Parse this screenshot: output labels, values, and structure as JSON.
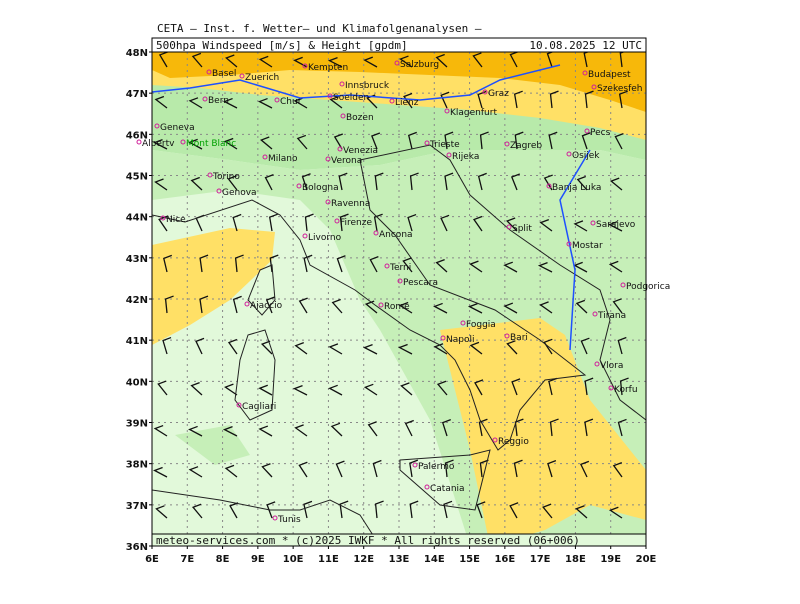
{
  "header": {
    "title": "CETA — Inst. f. Wetter— und Klimafolgenanalysen —",
    "product": "500hpa Windspeed [m/s] & Height [gpdm]",
    "datetime": "10.08.2025 12 UTC"
  },
  "footer": "meteo-services.com * (c)2025 IWKF * All rights reserved (06+006)",
  "axes": {
    "lat_labels": [
      "48N",
      "47N",
      "46N",
      "45N",
      "44N",
      "43N",
      "42N",
      "41N",
      "40N",
      "39N",
      "38N",
      "37N",
      "36N"
    ],
    "lon_labels": [
      "6E",
      "7E",
      "8E",
      "9E",
      "10E",
      "11E",
      "12E",
      "13E",
      "14E",
      "15E",
      "16E",
      "17E",
      "18E",
      "19E",
      "20E"
    ]
  },
  "cities": [
    "Basel",
    "Zuerich",
    "Kempten",
    "Salzburg",
    "Innsbruck",
    "Bern",
    "Chur",
    "Soelden",
    "Lienz",
    "Graz",
    "Budapest",
    "Szekesfeh",
    "Geneva",
    "Albertv",
    "Mont Blanc",
    "Bozen",
    "Klagenfurt",
    "Venezia",
    "Verona",
    "Milano",
    "Trieste",
    "Zagreb",
    "Pecs",
    "Rijeka",
    "Osijek",
    "Torino",
    "Banja Luka",
    "Genova",
    "Bologna",
    "Ravenna",
    "Split",
    "Firenze",
    "Sarajevo",
    "Nice",
    "Livorno",
    "Ancona",
    "Mostar",
    "Terni",
    "Pescara",
    "Podgorica",
    "Ajaccio",
    "Rome",
    "Tirana",
    "Foggia",
    "Bari",
    "Napoli",
    "Vlora",
    "Korfu",
    "Cagliari",
    "Palermo",
    "Reggio",
    "Catania",
    "Tunis"
  ]
}
